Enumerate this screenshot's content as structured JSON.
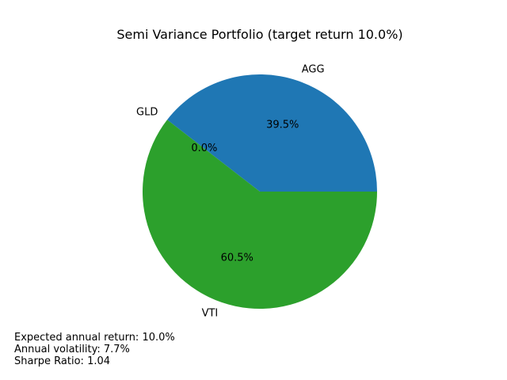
{
  "chart_data": {
    "type": "pie",
    "title": "Semi Variance Portfolio (target return 10.0%)",
    "slices": [
      {
        "label": "AGG",
        "value": 39.5,
        "pct_label": "39.5%",
        "color": "#1f77b4"
      },
      {
        "label": "GLD",
        "value": 0.0,
        "pct_label": "0.0%",
        "color": "#ff7f0e"
      },
      {
        "label": "VTI",
        "value": 60.5,
        "pct_label": "60.5%",
        "color": "#2ca02c"
      }
    ],
    "start_angle_deg": 0,
    "direction": "counterclockwise"
  },
  "stats": {
    "expected_return": "Expected annual return: 10.0%",
    "volatility": "Annual volatility: 7.7%",
    "sharpe": "Sharpe Ratio: 1.04"
  }
}
